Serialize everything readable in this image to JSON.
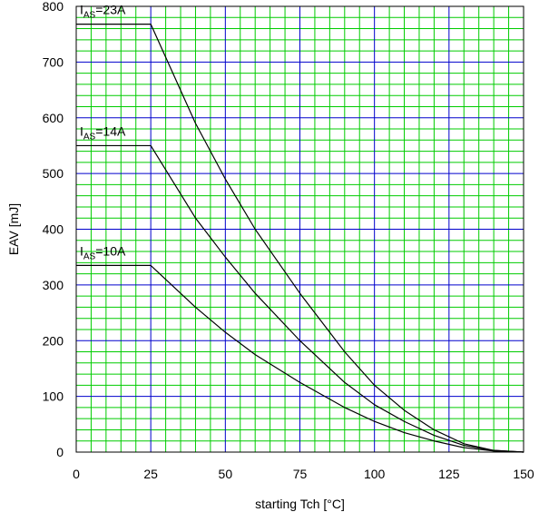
{
  "chart_data": {
    "type": "line",
    "xlabel": "starting Tch [°C]",
    "ylabel": "EAV [mJ]",
    "xlim": [
      0,
      150
    ],
    "ylim": [
      0,
      800
    ],
    "x_ticks": [
      0,
      25,
      50,
      75,
      100,
      125,
      150
    ],
    "y_ticks": [
      0,
      100,
      200,
      300,
      400,
      500,
      600,
      700,
      800
    ],
    "grid": true,
    "major_grid_color": "#0000cc",
    "minor_grid_color": "#00cc00",
    "line_color": "#000000",
    "series": [
      {
        "label_main": "I",
        "label_sub": "AS",
        "label_value": "=23A",
        "x": [
          0,
          25,
          40,
          50,
          60,
          75,
          90,
          100,
          110,
          120,
          130,
          140,
          150
        ],
        "values": [
          768,
          768,
          590,
          490,
          400,
          285,
          180,
          120,
          75,
          40,
          15,
          3,
          0
        ]
      },
      {
        "label_main": "I",
        "label_sub": "AS",
        "label_value": "=14A",
        "x": [
          0,
          25,
          40,
          50,
          60,
          75,
          90,
          100,
          110,
          120,
          130,
          140,
          150
        ],
        "values": [
          550,
          550,
          420,
          350,
          285,
          200,
          125,
          85,
          55,
          30,
          12,
          3,
          0
        ]
      },
      {
        "label_main": "I",
        "label_sub": "AS",
        "label_value": "=10A",
        "x": [
          0,
          25,
          40,
          50,
          60,
          75,
          90,
          100,
          110,
          120,
          130,
          140,
          150
        ],
        "values": [
          335,
          335,
          260,
          215,
          175,
          125,
          80,
          55,
          35,
          20,
          8,
          2,
          0
        ]
      }
    ]
  }
}
